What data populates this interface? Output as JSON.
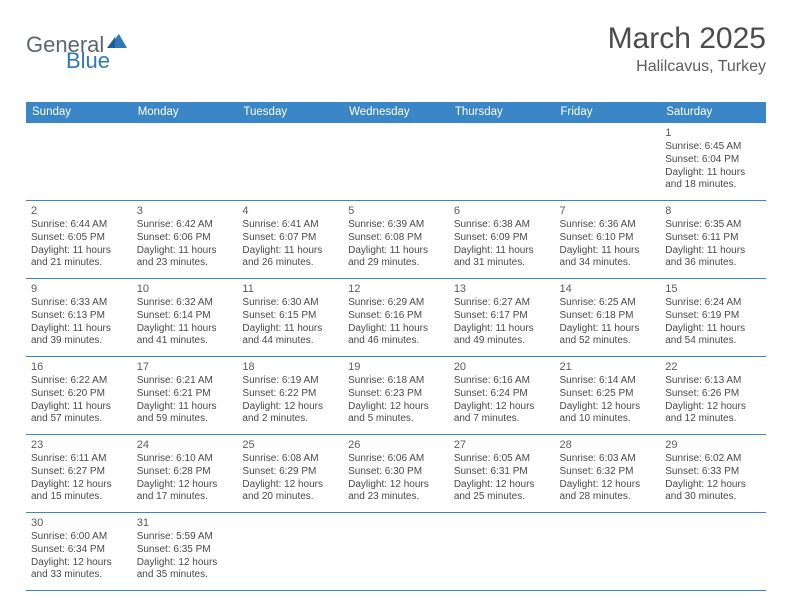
{
  "header": {
    "logo_general": "General",
    "logo_blue": "Blue",
    "month_title": "March 2025",
    "location": "Halilcavus, Turkey"
  },
  "colors": {
    "header_bg": "#3b86c6",
    "header_text": "#ffffff",
    "border": "#3b86c6",
    "body_text": "#4a4a4a",
    "logo_gray": "#5b6770",
    "logo_blue": "#2f79b9",
    "title_color": "#4c4c4c"
  },
  "days_of_week": [
    "Sunday",
    "Monday",
    "Tuesday",
    "Wednesday",
    "Thursday",
    "Friday",
    "Saturday"
  ],
  "weeks": [
    [
      null,
      null,
      null,
      null,
      null,
      null,
      {
        "n": "1",
        "sr": "Sunrise: 6:45 AM",
        "ss": "Sunset: 6:04 PM",
        "d1": "Daylight: 11 hours",
        "d2": "and 18 minutes."
      }
    ],
    [
      {
        "n": "2",
        "sr": "Sunrise: 6:44 AM",
        "ss": "Sunset: 6:05 PM",
        "d1": "Daylight: 11 hours",
        "d2": "and 21 minutes."
      },
      {
        "n": "3",
        "sr": "Sunrise: 6:42 AM",
        "ss": "Sunset: 6:06 PM",
        "d1": "Daylight: 11 hours",
        "d2": "and 23 minutes."
      },
      {
        "n": "4",
        "sr": "Sunrise: 6:41 AM",
        "ss": "Sunset: 6:07 PM",
        "d1": "Daylight: 11 hours",
        "d2": "and 26 minutes."
      },
      {
        "n": "5",
        "sr": "Sunrise: 6:39 AM",
        "ss": "Sunset: 6:08 PM",
        "d1": "Daylight: 11 hours",
        "d2": "and 29 minutes."
      },
      {
        "n": "6",
        "sr": "Sunrise: 6:38 AM",
        "ss": "Sunset: 6:09 PM",
        "d1": "Daylight: 11 hours",
        "d2": "and 31 minutes."
      },
      {
        "n": "7",
        "sr": "Sunrise: 6:36 AM",
        "ss": "Sunset: 6:10 PM",
        "d1": "Daylight: 11 hours",
        "d2": "and 34 minutes."
      },
      {
        "n": "8",
        "sr": "Sunrise: 6:35 AM",
        "ss": "Sunset: 6:11 PM",
        "d1": "Daylight: 11 hours",
        "d2": "and 36 minutes."
      }
    ],
    [
      {
        "n": "9",
        "sr": "Sunrise: 6:33 AM",
        "ss": "Sunset: 6:13 PM",
        "d1": "Daylight: 11 hours",
        "d2": "and 39 minutes."
      },
      {
        "n": "10",
        "sr": "Sunrise: 6:32 AM",
        "ss": "Sunset: 6:14 PM",
        "d1": "Daylight: 11 hours",
        "d2": "and 41 minutes."
      },
      {
        "n": "11",
        "sr": "Sunrise: 6:30 AM",
        "ss": "Sunset: 6:15 PM",
        "d1": "Daylight: 11 hours",
        "d2": "and 44 minutes."
      },
      {
        "n": "12",
        "sr": "Sunrise: 6:29 AM",
        "ss": "Sunset: 6:16 PM",
        "d1": "Daylight: 11 hours",
        "d2": "and 46 minutes."
      },
      {
        "n": "13",
        "sr": "Sunrise: 6:27 AM",
        "ss": "Sunset: 6:17 PM",
        "d1": "Daylight: 11 hours",
        "d2": "and 49 minutes."
      },
      {
        "n": "14",
        "sr": "Sunrise: 6:25 AM",
        "ss": "Sunset: 6:18 PM",
        "d1": "Daylight: 11 hours",
        "d2": "and 52 minutes."
      },
      {
        "n": "15",
        "sr": "Sunrise: 6:24 AM",
        "ss": "Sunset: 6:19 PM",
        "d1": "Daylight: 11 hours",
        "d2": "and 54 minutes."
      }
    ],
    [
      {
        "n": "16",
        "sr": "Sunrise: 6:22 AM",
        "ss": "Sunset: 6:20 PM",
        "d1": "Daylight: 11 hours",
        "d2": "and 57 minutes."
      },
      {
        "n": "17",
        "sr": "Sunrise: 6:21 AM",
        "ss": "Sunset: 6:21 PM",
        "d1": "Daylight: 11 hours",
        "d2": "and 59 minutes."
      },
      {
        "n": "18",
        "sr": "Sunrise: 6:19 AM",
        "ss": "Sunset: 6:22 PM",
        "d1": "Daylight: 12 hours",
        "d2": "and 2 minutes."
      },
      {
        "n": "19",
        "sr": "Sunrise: 6:18 AM",
        "ss": "Sunset: 6:23 PM",
        "d1": "Daylight: 12 hours",
        "d2": "and 5 minutes."
      },
      {
        "n": "20",
        "sr": "Sunrise: 6:16 AM",
        "ss": "Sunset: 6:24 PM",
        "d1": "Daylight: 12 hours",
        "d2": "and 7 minutes."
      },
      {
        "n": "21",
        "sr": "Sunrise: 6:14 AM",
        "ss": "Sunset: 6:25 PM",
        "d1": "Daylight: 12 hours",
        "d2": "and 10 minutes."
      },
      {
        "n": "22",
        "sr": "Sunrise: 6:13 AM",
        "ss": "Sunset: 6:26 PM",
        "d1": "Daylight: 12 hours",
        "d2": "and 12 minutes."
      }
    ],
    [
      {
        "n": "23",
        "sr": "Sunrise: 6:11 AM",
        "ss": "Sunset: 6:27 PM",
        "d1": "Daylight: 12 hours",
        "d2": "and 15 minutes."
      },
      {
        "n": "24",
        "sr": "Sunrise: 6:10 AM",
        "ss": "Sunset: 6:28 PM",
        "d1": "Daylight: 12 hours",
        "d2": "and 17 minutes."
      },
      {
        "n": "25",
        "sr": "Sunrise: 6:08 AM",
        "ss": "Sunset: 6:29 PM",
        "d1": "Daylight: 12 hours",
        "d2": "and 20 minutes."
      },
      {
        "n": "26",
        "sr": "Sunrise: 6:06 AM",
        "ss": "Sunset: 6:30 PM",
        "d1": "Daylight: 12 hours",
        "d2": "and 23 minutes."
      },
      {
        "n": "27",
        "sr": "Sunrise: 6:05 AM",
        "ss": "Sunset: 6:31 PM",
        "d1": "Daylight: 12 hours",
        "d2": "and 25 minutes."
      },
      {
        "n": "28",
        "sr": "Sunrise: 6:03 AM",
        "ss": "Sunset: 6:32 PM",
        "d1": "Daylight: 12 hours",
        "d2": "and 28 minutes."
      },
      {
        "n": "29",
        "sr": "Sunrise: 6:02 AM",
        "ss": "Sunset: 6:33 PM",
        "d1": "Daylight: 12 hours",
        "d2": "and 30 minutes."
      }
    ],
    [
      {
        "n": "30",
        "sr": "Sunrise: 6:00 AM",
        "ss": "Sunset: 6:34 PM",
        "d1": "Daylight: 12 hours",
        "d2": "and 33 minutes."
      },
      {
        "n": "31",
        "sr": "Sunrise: 5:59 AM",
        "ss": "Sunset: 6:35 PM",
        "d1": "Daylight: 12 hours",
        "d2": "and 35 minutes."
      },
      null,
      null,
      null,
      null,
      null
    ]
  ]
}
